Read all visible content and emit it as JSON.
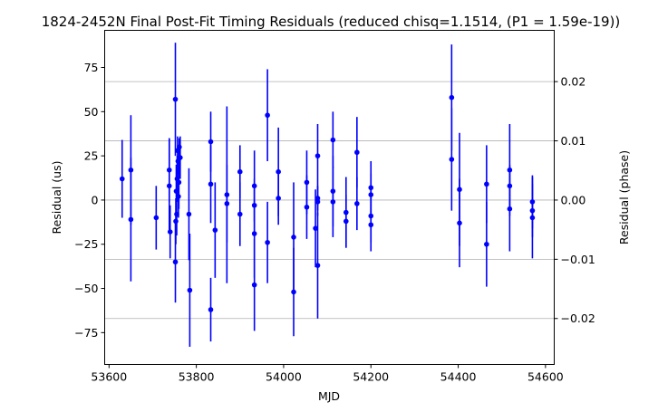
{
  "chart_data": {
    "type": "scatter",
    "title": "1824-2452N Final Post-Fit Timing Residuals (reduced chisq=1.1514, (P1 = 1.59e-19))",
    "xlabel": "MJD",
    "ylabel": "Residual (us)",
    "y2label": "Residual (phase)",
    "xlim": [
      53590,
      54620
    ],
    "ylim": [
      -93,
      96
    ],
    "y2lim": [
      -0.02776,
      0.02866
    ],
    "xticks": [
      53600,
      53800,
      54000,
      54200,
      54400,
      54600
    ],
    "yticks": [
      -75,
      -50,
      -25,
      0,
      25,
      50,
      75
    ],
    "y2ticks": [
      -0.02,
      -0.01,
      0.0,
      0.01,
      0.02
    ],
    "xtick_labels": [
      "53600",
      "53800",
      "54000",
      "54200",
      "54400",
      "54600"
    ],
    "ytick_labels": [
      "−75",
      "−50",
      "−25",
      "0",
      "25",
      "50",
      "75"
    ],
    "y2tick_labels": [
      "−0.02",
      "−0.01",
      "0.00",
      "0.01",
      "0.02"
    ],
    "grid": "horizontal at right-axis ticks",
    "marker_color": "#0000ff",
    "points": [
      {
        "x": 53630,
        "y": 12,
        "err": 22
      },
      {
        "x": 53650,
        "y": 17,
        "err": 31
      },
      {
        "x": 53650,
        "y": -11,
        "err": 35
      },
      {
        "x": 53708,
        "y": -10,
        "err": 18
      },
      {
        "x": 53738,
        "y": 17,
        "err": 18
      },
      {
        "x": 53738,
        "y": 8,
        "err": 27
      },
      {
        "x": 53740,
        "y": -18,
        "err": 15
      },
      {
        "x": 53752,
        "y": 57,
        "err": 32
      },
      {
        "x": 53752,
        "y": -35,
        "err": 23
      },
      {
        "x": 53753,
        "y": -12,
        "err": 13
      },
      {
        "x": 53754,
        "y": 5,
        "err": 15
      },
      {
        "x": 53755,
        "y": -8,
        "err": 12
      },
      {
        "x": 53756,
        "y": 12,
        "err": 13
      },
      {
        "x": 53757,
        "y": 28,
        "err": 8
      },
      {
        "x": 53758,
        "y": 22,
        "err": 8
      },
      {
        "x": 53759,
        "y": 2,
        "err": 12
      },
      {
        "x": 53760,
        "y": 10,
        "err": 15
      },
      {
        "x": 53761,
        "y": 30,
        "err": 5
      },
      {
        "x": 53763,
        "y": 24,
        "err": 12
      },
      {
        "x": 53783,
        "y": -8,
        "err": 26
      },
      {
        "x": 53785,
        "y": -51,
        "err": 32
      },
      {
        "x": 53833,
        "y": 33,
        "err": 17
      },
      {
        "x": 53833,
        "y": 9,
        "err": 22
      },
      {
        "x": 53833,
        "y": -62,
        "err": 18
      },
      {
        "x": 53843,
        "y": -17,
        "err": 27
      },
      {
        "x": 53870,
        "y": 3,
        "err": 50
      },
      {
        "x": 53870,
        "y": -2,
        "err": 22
      },
      {
        "x": 53900,
        "y": 16,
        "err": 15
      },
      {
        "x": 53900,
        "y": -8,
        "err": 18
      },
      {
        "x": 53933,
        "y": 8,
        "err": 20
      },
      {
        "x": 53933,
        "y": -3,
        "err": 15
      },
      {
        "x": 53933,
        "y": -19,
        "err": 25
      },
      {
        "x": 53933,
        "y": -48,
        "err": 26
      },
      {
        "x": 53963,
        "y": 48,
        "err": 26
      },
      {
        "x": 53963,
        "y": -24,
        "err": 23
      },
      {
        "x": 53988,
        "y": 16,
        "err": 25
      },
      {
        "x": 53988,
        "y": 1,
        "err": 15
      },
      {
        "x": 54023,
        "y": -21,
        "err": 31
      },
      {
        "x": 54023,
        "y": -52,
        "err": 25
      },
      {
        "x": 54053,
        "y": 10,
        "err": 18
      },
      {
        "x": 54053,
        "y": -4,
        "err": 18
      },
      {
        "x": 54073,
        "y": -16,
        "err": 22
      },
      {
        "x": 54078,
        "y": 25,
        "err": 18
      },
      {
        "x": 54078,
        "y": 1,
        "err": 7
      },
      {
        "x": 54078,
        "y": -1,
        "err": 8
      },
      {
        "x": 54078,
        "y": -37,
        "err": 30
      },
      {
        "x": 54113,
        "y": 34,
        "err": 16
      },
      {
        "x": 54113,
        "y": 5,
        "err": 20
      },
      {
        "x": 54113,
        "y": -1,
        "err": 20
      },
      {
        "x": 54143,
        "y": -7,
        "err": 20
      },
      {
        "x": 54143,
        "y": -12,
        "err": 15
      },
      {
        "x": 54168,
        "y": 27,
        "err": 20
      },
      {
        "x": 54168,
        "y": -2,
        "err": 15
      },
      {
        "x": 54200,
        "y": 7,
        "err": 15
      },
      {
        "x": 54200,
        "y": 3,
        "err": 12
      },
      {
        "x": 54200,
        "y": -9,
        "err": 15
      },
      {
        "x": 54200,
        "y": -14,
        "err": 15
      },
      {
        "x": 54385,
        "y": 58,
        "err": 30
      },
      {
        "x": 54385,
        "y": 23,
        "err": 29
      },
      {
        "x": 54403,
        "y": 6,
        "err": 32
      },
      {
        "x": 54403,
        "y": -13,
        "err": 25
      },
      {
        "x": 54465,
        "y": 9,
        "err": 22
      },
      {
        "x": 54465,
        "y": -25,
        "err": 24
      },
      {
        "x": 54518,
        "y": 17,
        "err": 26
      },
      {
        "x": 54518,
        "y": 8,
        "err": 12
      },
      {
        "x": 54518,
        "y": -5,
        "err": 24
      },
      {
        "x": 54570,
        "y": -1,
        "err": 15
      },
      {
        "x": 54570,
        "y": -6,
        "err": 15
      },
      {
        "x": 54570,
        "y": -10,
        "err": 23
      }
    ]
  }
}
